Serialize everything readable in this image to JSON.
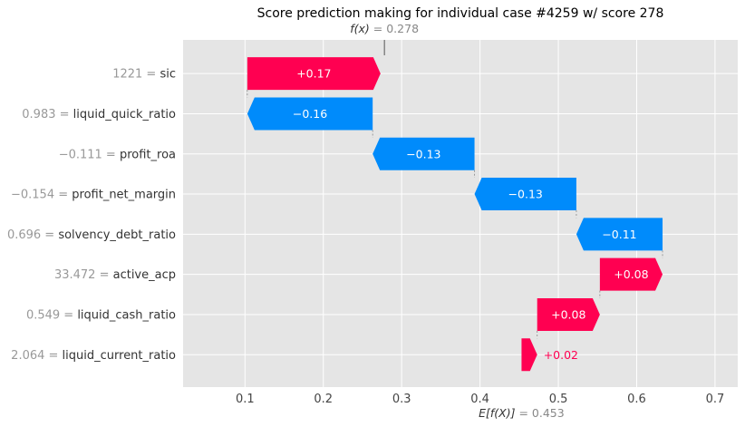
{
  "chart_data": {
    "type": "waterfall",
    "title": "Score prediction making for individual case #4259 w/ score 278",
    "fx_label": "f(x)",
    "fx_value": "0.278",
    "efx_label": "E[f(X)]",
    "efx_value": "0.453",
    "base_value": 0.453,
    "final_value": 0.278,
    "xlim": [
      0.021,
      0.729
    ],
    "xticks": [
      "0.1",
      "0.2",
      "0.3",
      "0.4",
      "0.5",
      "0.6",
      "0.7"
    ],
    "grid": true,
    "features": [
      {
        "value": "1221",
        "name": "sic",
        "contribution": 0.17,
        "label": "+0.17"
      },
      {
        "value": "0.983",
        "name": "liquid_quick_ratio",
        "contribution": -0.16,
        "label": "−0.16"
      },
      {
        "value": "−0.111",
        "name": "profit_roa",
        "contribution": -0.13,
        "label": "−0.13"
      },
      {
        "value": "−0.154",
        "name": "profit_net_margin",
        "contribution": -0.13,
        "label": "−0.13"
      },
      {
        "value": "0.696",
        "name": "solvency_debt_ratio",
        "contribution": -0.11,
        "label": "−0.11"
      },
      {
        "value": "33.472",
        "name": "active_acp",
        "contribution": 0.08,
        "label": "+0.08"
      },
      {
        "value": "0.549",
        "name": "liquid_cash_ratio",
        "contribution": 0.08,
        "label": "+0.08"
      },
      {
        "value": "2.064",
        "name": "liquid_current_ratio",
        "contribution": 0.02,
        "label": "+0.02"
      }
    ],
    "colors": {
      "positive": "#ff0051",
      "negative": "#008bfb",
      "background": "#e5e5e5",
      "grid": "#ffffff"
    }
  }
}
